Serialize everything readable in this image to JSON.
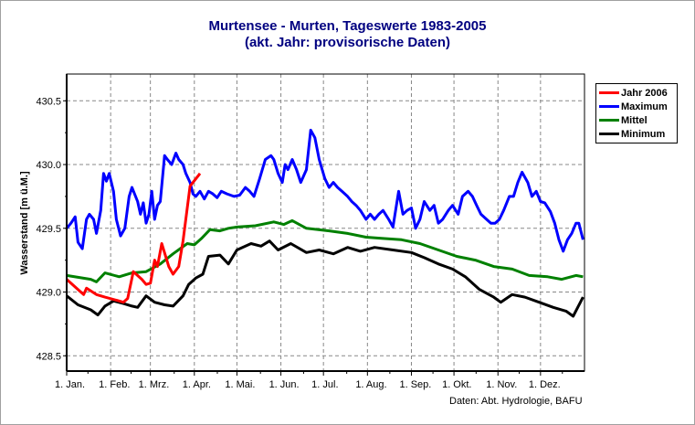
{
  "chart_data": {
    "type": "line",
    "title": "Murtensee - Murten, Tageswerte 1983-2005",
    "subtitle": "(akt. Jahr: provisorische Daten)",
    "xlabel": "",
    "ylabel": "Wasserstand [m ü.M.]",
    "xlim": [
      0,
      365
    ],
    "ylim": [
      428.38,
      430.71
    ],
    "grid": true,
    "legend_position": "right",
    "x_ticks": [
      {
        "day": 0,
        "label": "1. Jan."
      },
      {
        "day": 31,
        "label": "1. Feb."
      },
      {
        "day": 59,
        "label": "1. Mrz."
      },
      {
        "day": 90,
        "label": "1. Apr."
      },
      {
        "day": 120,
        "label": "1. Mai."
      },
      {
        "day": 151,
        "label": "1. Jun."
      },
      {
        "day": 181,
        "label": "1. Jul."
      },
      {
        "day": 212,
        "label": "1. Aug."
      },
      {
        "day": 243,
        "label": "1. Sep."
      },
      {
        "day": 273,
        "label": "1. Okt."
      },
      {
        "day": 304,
        "label": "1. Nov."
      },
      {
        "day": 334,
        "label": "1. Dez."
      }
    ],
    "y_ticks": [
      {
        "value": 428.5,
        "label": "428.5"
      },
      {
        "value": 429.0,
        "label": "429.0"
      },
      {
        "value": 429.5,
        "label": "429.5"
      },
      {
        "value": 430.0,
        "label": "430.0"
      },
      {
        "value": 430.5,
        "label": "430.5"
      }
    ],
    "series": [
      {
        "name": "Jahr 2006",
        "color": "#ff0000",
        "x": [
          0,
          8,
          12,
          14,
          21,
          27,
          37,
          40,
          43,
          47,
          53,
          56,
          59,
          62,
          64,
          67,
          72,
          75,
          79,
          82,
          87,
          94
        ],
        "y": [
          429.1,
          429.02,
          428.98,
          429.03,
          428.98,
          428.96,
          428.93,
          428.92,
          428.95,
          429.16,
          429.1,
          429.06,
          429.07,
          429.25,
          429.2,
          429.38,
          429.2,
          429.14,
          429.2,
          429.4,
          429.83,
          429.93
        ]
      },
      {
        "name": "Maximum",
        "color": "#0000ff",
        "x": [
          0,
          3,
          6,
          8,
          11,
          14,
          16,
          19,
          21,
          24,
          26,
          28,
          30,
          33,
          35,
          38,
          41,
          44,
          46,
          50,
          52,
          54,
          56,
          58,
          60,
          62,
          64,
          66,
          69,
          71,
          74,
          77,
          79,
          82,
          84,
          87,
          89,
          91,
          94,
          97,
          100,
          103,
          106,
          109,
          113,
          118,
          122,
          126,
          129,
          132,
          136,
          140,
          144,
          146,
          149,
          152,
          154,
          156,
          159,
          162,
          165,
          169,
          172,
          175,
          178,
          182,
          185,
          188,
          191,
          194,
          198,
          201,
          204,
          207,
          211,
          214,
          217,
          220,
          223,
          227,
          230,
          234,
          237,
          240,
          243,
          246,
          249,
          252,
          256,
          259,
          262,
          265,
          269,
          272,
          276,
          279,
          283,
          286,
          289,
          292,
          296,
          299,
          302,
          305,
          308,
          312,
          315,
          318,
          321,
          325,
          328,
          331,
          334,
          337,
          341,
          344,
          347,
          350,
          353,
          356,
          359,
          361,
          364
        ],
        "y": [
          429.5,
          429.54,
          429.59,
          429.39,
          429.34,
          429.57,
          429.61,
          429.57,
          429.46,
          429.64,
          429.93,
          429.87,
          429.93,
          429.79,
          429.57,
          429.44,
          429.5,
          429.75,
          429.82,
          429.71,
          429.61,
          429.7,
          429.54,
          429.61,
          429.79,
          429.57,
          429.68,
          429.71,
          430.07,
          430.04,
          430.0,
          430.09,
          430.04,
          430.0,
          429.93,
          429.86,
          429.77,
          429.75,
          429.79,
          429.73,
          429.79,
          429.77,
          429.74,
          429.79,
          429.77,
          429.75,
          429.76,
          429.82,
          429.79,
          429.75,
          429.89,
          430.04,
          430.07,
          430.04,
          429.93,
          429.86,
          430.0,
          429.96,
          430.04,
          429.96,
          429.86,
          429.96,
          430.27,
          430.21,
          430.04,
          429.89,
          429.82,
          429.86,
          429.82,
          429.79,
          429.75,
          429.71,
          429.68,
          429.64,
          429.57,
          429.61,
          429.57,
          429.61,
          429.64,
          429.57,
          429.51,
          429.79,
          429.61,
          429.64,
          429.66,
          429.5,
          429.57,
          429.71,
          429.64,
          429.68,
          429.54,
          429.57,
          429.64,
          429.68,
          429.61,
          429.75,
          429.79,
          429.75,
          429.68,
          429.61,
          429.57,
          429.54,
          429.54,
          429.57,
          429.64,
          429.75,
          429.75,
          429.86,
          429.94,
          429.86,
          429.75,
          429.79,
          429.71,
          429.7,
          429.63,
          429.54,
          429.41,
          429.32,
          429.41,
          429.46,
          429.54,
          429.54,
          429.41
        ]
      },
      {
        "name": "Mittel",
        "color": "#008000",
        "x": [
          0,
          17,
          21,
          27,
          37,
          46,
          56,
          66,
          75,
          85,
          90,
          95,
          101,
          108,
          114,
          120,
          133,
          146,
          153,
          159,
          169,
          185,
          198,
          211,
          223,
          236,
          249,
          262,
          275,
          288,
          301,
          314,
          326,
          339,
          349,
          359,
          364
        ],
        "y": [
          429.13,
          429.1,
          429.08,
          429.15,
          429.12,
          429.15,
          429.16,
          429.22,
          429.3,
          429.38,
          429.37,
          429.42,
          429.49,
          429.48,
          429.5,
          429.51,
          429.52,
          429.55,
          429.53,
          429.56,
          429.5,
          429.48,
          429.46,
          429.43,
          429.42,
          429.41,
          429.38,
          429.33,
          429.28,
          429.25,
          429.2,
          429.18,
          429.13,
          429.12,
          429.1,
          429.13,
          429.12
        ]
      },
      {
        "name": "Minimum",
        "color": "#000000",
        "x": [
          0,
          8,
          17,
          22,
          27,
          33,
          40,
          46,
          50,
          56,
          62,
          69,
          75,
          82,
          86,
          91,
          96,
          100,
          108,
          114,
          120,
          130,
          137,
          143,
          149,
          158,
          169,
          178,
          188,
          198,
          207,
          217,
          230,
          243,
          252,
          262,
          272,
          281,
          291,
          301,
          306,
          314,
          323,
          333,
          343,
          352,
          357,
          364
        ],
        "y": [
          428.97,
          428.9,
          428.86,
          428.82,
          428.89,
          428.93,
          428.91,
          428.89,
          428.88,
          428.97,
          428.92,
          428.9,
          428.89,
          428.97,
          429.06,
          429.11,
          429.14,
          429.28,
          429.29,
          429.22,
          429.33,
          429.38,
          429.36,
          429.4,
          429.33,
          429.38,
          429.31,
          429.33,
          429.3,
          429.35,
          429.32,
          429.35,
          429.33,
          429.31,
          429.27,
          429.22,
          429.18,
          429.12,
          429.02,
          428.96,
          428.92,
          428.98,
          428.96,
          428.92,
          428.88,
          428.85,
          428.81,
          428.96
        ]
      }
    ]
  },
  "source": "Daten: Abt. Hydrologie, BAFU"
}
